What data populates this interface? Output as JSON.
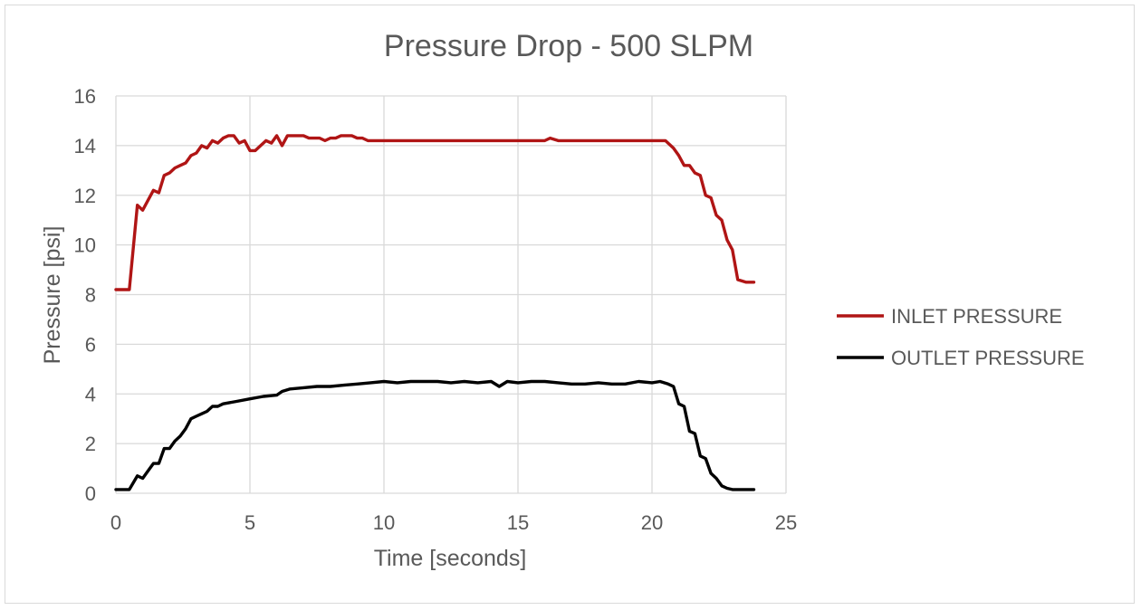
{
  "chart_data": {
    "type": "line",
    "title": "Pressure Drop - 500 SLPM",
    "xlabel": "Time [seconds]",
    "ylabel": "Pressure [psi]",
    "xlim": [
      0,
      25
    ],
    "ylim": [
      0,
      16
    ],
    "xticks": [
      0,
      5,
      10,
      15,
      20,
      25
    ],
    "yticks": [
      0,
      2,
      4,
      6,
      8,
      10,
      12,
      14,
      16
    ],
    "grid": true,
    "legend_position": "right",
    "series": [
      {
        "name": "INLET PRESSURE",
        "color": "#b01515",
        "x": [
          0,
          0.5,
          0.8,
          1.0,
          1.2,
          1.4,
          1.6,
          1.8,
          2.0,
          2.2,
          2.4,
          2.6,
          2.8,
          3.0,
          3.2,
          3.4,
          3.6,
          3.8,
          4.0,
          4.2,
          4.4,
          4.6,
          4.8,
          5.0,
          5.2,
          5.4,
          5.6,
          5.8,
          6.0,
          6.2,
          6.4,
          6.6,
          6.8,
          7.0,
          7.2,
          7.4,
          7.6,
          7.8,
          8.0,
          8.2,
          8.4,
          8.6,
          8.8,
          9.0,
          9.2,
          9.4,
          9.6,
          9.8,
          10.0,
          10.5,
          11.0,
          11.5,
          12.0,
          12.5,
          13.0,
          13.5,
          14.0,
          14.5,
          15.0,
          15.5,
          16.0,
          16.2,
          16.5,
          17.0,
          17.5,
          18.0,
          18.5,
          19.0,
          19.5,
          20.0,
          20.5,
          20.8,
          21.0,
          21.2,
          21.4,
          21.6,
          21.8,
          22.0,
          22.2,
          22.4,
          22.6,
          22.8,
          23.0,
          23.2,
          23.5,
          23.8
        ],
        "values": [
          8.2,
          8.2,
          11.6,
          11.4,
          11.8,
          12.2,
          12.1,
          12.8,
          12.9,
          13.1,
          13.2,
          13.3,
          13.6,
          13.7,
          14.0,
          13.9,
          14.2,
          14.1,
          14.3,
          14.4,
          14.4,
          14.1,
          14.2,
          13.8,
          13.8,
          14.0,
          14.2,
          14.1,
          14.4,
          14.0,
          14.4,
          14.4,
          14.4,
          14.4,
          14.3,
          14.3,
          14.3,
          14.2,
          14.3,
          14.3,
          14.4,
          14.4,
          14.4,
          14.3,
          14.3,
          14.2,
          14.2,
          14.2,
          14.2,
          14.2,
          14.2,
          14.2,
          14.2,
          14.2,
          14.2,
          14.2,
          14.2,
          14.2,
          14.2,
          14.2,
          14.2,
          14.3,
          14.2,
          14.2,
          14.2,
          14.2,
          14.2,
          14.2,
          14.2,
          14.2,
          14.2,
          13.9,
          13.6,
          13.2,
          13.2,
          12.9,
          12.8,
          12.0,
          11.9,
          11.2,
          11.0,
          10.2,
          9.8,
          8.6,
          8.5,
          8.5
        ]
      },
      {
        "name": "OUTLET PRESSURE",
        "color": "#000000",
        "x": [
          0,
          0.5,
          0.8,
          1.0,
          1.2,
          1.4,
          1.6,
          1.8,
          2.0,
          2.2,
          2.4,
          2.6,
          2.8,
          3.0,
          3.2,
          3.4,
          3.6,
          3.8,
          4.0,
          4.5,
          5.0,
          5.5,
          6.0,
          6.2,
          6.5,
          7.0,
          7.5,
          8.0,
          8.5,
          9.0,
          9.5,
          10.0,
          10.5,
          11.0,
          11.5,
          12.0,
          12.5,
          13.0,
          13.5,
          14.0,
          14.3,
          14.6,
          15.0,
          15.5,
          16.0,
          16.5,
          17.0,
          17.5,
          18.0,
          18.5,
          19.0,
          19.5,
          20.0,
          20.3,
          20.6,
          20.8,
          21.0,
          21.2,
          21.4,
          21.6,
          21.8,
          22.0,
          22.2,
          22.4,
          22.6,
          22.8,
          23.0,
          23.2,
          23.5,
          23.8
        ],
        "values": [
          0.15,
          0.15,
          0.7,
          0.6,
          0.9,
          1.2,
          1.2,
          1.8,
          1.8,
          2.1,
          2.3,
          2.6,
          3.0,
          3.1,
          3.2,
          3.3,
          3.5,
          3.5,
          3.6,
          3.7,
          3.8,
          3.9,
          3.95,
          4.1,
          4.2,
          4.25,
          4.3,
          4.3,
          4.35,
          4.4,
          4.45,
          4.5,
          4.45,
          4.5,
          4.5,
          4.5,
          4.45,
          4.5,
          4.45,
          4.5,
          4.3,
          4.5,
          4.45,
          4.5,
          4.5,
          4.45,
          4.4,
          4.4,
          4.45,
          4.4,
          4.4,
          4.5,
          4.45,
          4.5,
          4.4,
          4.3,
          3.6,
          3.5,
          2.5,
          2.4,
          1.5,
          1.4,
          0.8,
          0.6,
          0.3,
          0.2,
          0.15,
          0.15,
          0.15,
          0.15
        ]
      }
    ]
  }
}
